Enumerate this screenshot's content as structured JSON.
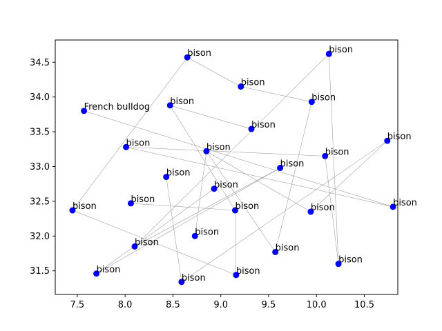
{
  "chart_data": {
    "type": "scatter",
    "title": "",
    "xlabel": "",
    "ylabel": "",
    "xlim": [
      7.27,
      10.85
    ],
    "ylim": [
      31.16,
      34.82
    ],
    "xticks": [
      7.5,
      8.0,
      8.5,
      9.0,
      9.5,
      10.0,
      10.5
    ],
    "xtick_labels": [
      "7.5",
      "8.0",
      "8.5",
      "9.0",
      "9.5",
      "10.0",
      "10.5"
    ],
    "yticks": [
      31.5,
      32.0,
      32.5,
      33.0,
      33.5,
      34.0,
      34.5
    ],
    "ytick_labels": [
      "31.5",
      "32.0",
      "32.5",
      "33.0",
      "33.5",
      "34.0",
      "34.5"
    ],
    "grid": false,
    "marker_color": "#0000ff",
    "edge_color": "#a0a0a0",
    "points": [
      {
        "x": 8.65,
        "y": 34.57,
        "label": "bison"
      },
      {
        "x": 10.13,
        "y": 34.62,
        "label": "bison"
      },
      {
        "x": 9.21,
        "y": 34.15,
        "label": "bison"
      },
      {
        "x": 8.47,
        "y": 33.88,
        "label": "bison"
      },
      {
        "x": 9.95,
        "y": 33.93,
        "label": "bison"
      },
      {
        "x": 7.57,
        "y": 33.8,
        "label": "French bulldog"
      },
      {
        "x": 9.32,
        "y": 33.54,
        "label": "bison"
      },
      {
        "x": 10.74,
        "y": 33.37,
        "label": "bison"
      },
      {
        "x": 8.01,
        "y": 33.28,
        "label": "bison"
      },
      {
        "x": 8.85,
        "y": 33.22,
        "label": "bison"
      },
      {
        "x": 10.09,
        "y": 33.15,
        "label": "bison"
      },
      {
        "x": 9.62,
        "y": 32.98,
        "label": "bison"
      },
      {
        "x": 8.43,
        "y": 32.85,
        "label": "bison"
      },
      {
        "x": 8.93,
        "y": 32.68,
        "label": "bison"
      },
      {
        "x": 8.06,
        "y": 32.47,
        "label": "bison"
      },
      {
        "x": 10.8,
        "y": 32.42,
        "label": "bison"
      },
      {
        "x": 7.45,
        "y": 32.37,
        "label": "bison"
      },
      {
        "x": 9.15,
        "y": 32.37,
        "label": "bison"
      },
      {
        "x": 9.94,
        "y": 32.35,
        "label": "bison"
      },
      {
        "x": 8.73,
        "y": 32.0,
        "label": "bison"
      },
      {
        "x": 8.1,
        "y": 31.85,
        "label": "bison"
      },
      {
        "x": 9.57,
        "y": 31.77,
        "label": "bison"
      },
      {
        "x": 10.23,
        "y": 31.6,
        "label": "bison"
      },
      {
        "x": 7.7,
        "y": 31.46,
        "label": "bison"
      },
      {
        "x": 9.16,
        "y": 31.44,
        "label": "bison"
      },
      {
        "x": 8.59,
        "y": 31.34,
        "label": "bison"
      }
    ],
    "edges": [
      [
        0,
        16
      ],
      [
        0,
        2
      ],
      [
        2,
        4
      ],
      [
        4,
        21
      ],
      [
        1,
        20
      ],
      [
        1,
        22
      ],
      [
        3,
        6
      ],
      [
        3,
        17
      ],
      [
        5,
        15
      ],
      [
        8,
        10
      ],
      [
        10,
        22
      ],
      [
        9,
        19
      ],
      [
        9,
        18
      ],
      [
        11,
        23
      ],
      [
        9,
        21
      ],
      [
        12,
        25
      ],
      [
        14,
        17
      ],
      [
        17,
        24
      ],
      [
        16,
        24
      ],
      [
        7,
        18
      ],
      [
        7,
        25
      ],
      [
        20,
        11
      ],
      [
        8,
        15
      ],
      [
        13,
        23
      ]
    ]
  }
}
